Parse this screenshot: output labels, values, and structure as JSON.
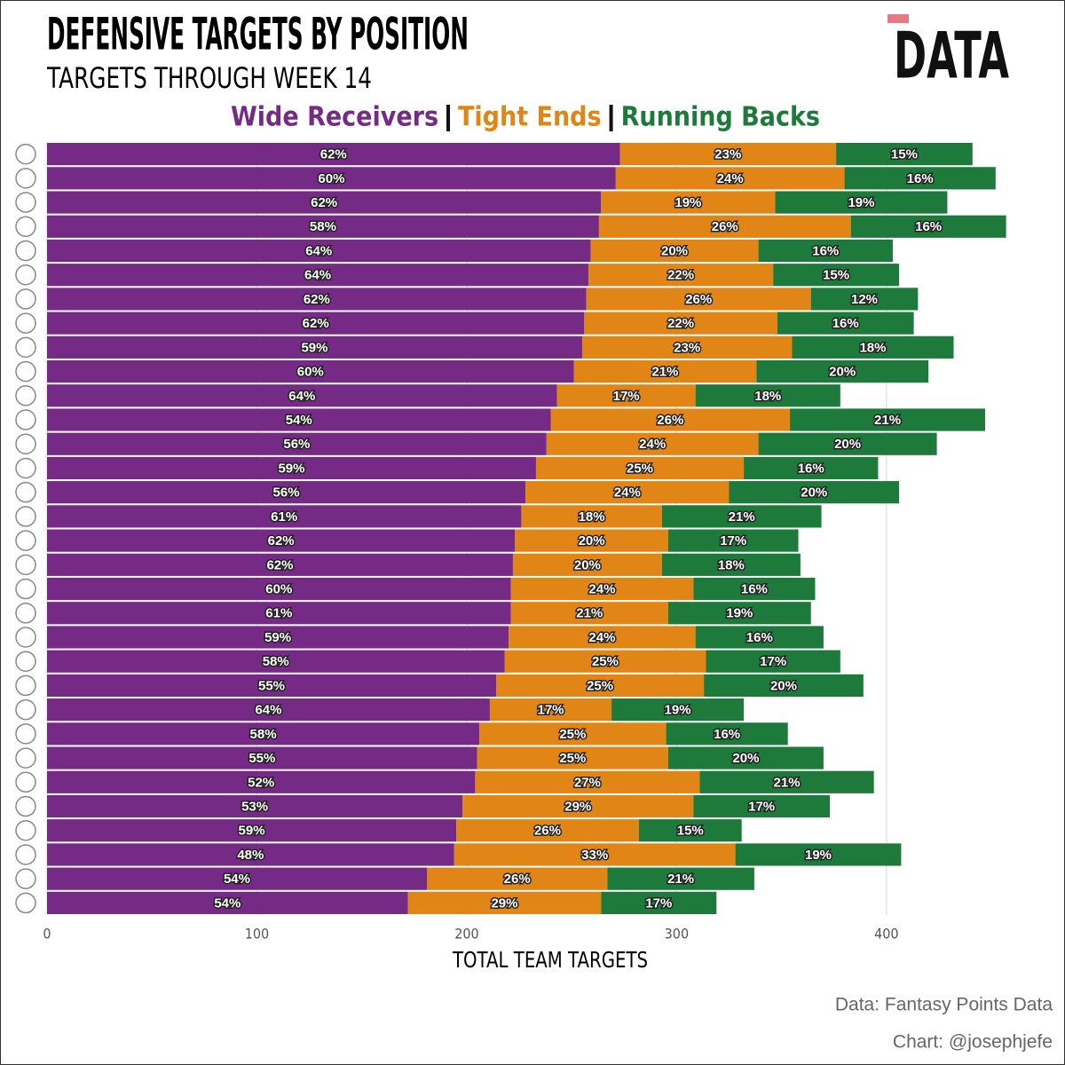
{
  "chart_data": {
    "type": "stacked_barh",
    "title": "DEFENSIVE TARGETS BY POSITION",
    "subtitle": "TARGETS THROUGH WEEK 14",
    "logo_text": "DATA",
    "x_label": "TOTAL TEAM TARGETS",
    "source": "Data: Fantasy Points Data",
    "credit": "Chart: @josephjefe",
    "categories": [
      null,
      null,
      null,
      null,
      null,
      null,
      null,
      null,
      null,
      null,
      null,
      null,
      null,
      null,
      null,
      null,
      null,
      null,
      null,
      null,
      null,
      null,
      null,
      null,
      null,
      null,
      null,
      null,
      null,
      null,
      null,
      null
    ],
    "xlim": [
      0,
      458
    ],
    "xticks": [
      0,
      100,
      200,
      300,
      400
    ],
    "grid": true,
    "series": [
      {
        "name": "Wide Receivers",
        "color": "#752a86",
        "values": [
          273,
          271,
          264,
          263,
          259,
          258,
          257,
          256,
          255,
          251,
          243,
          240,
          238,
          233,
          228,
          226,
          223,
          222,
          221,
          221,
          220,
          218,
          214,
          211,
          206,
          205,
          204,
          198,
          195,
          194,
          181,
          172
        ],
        "value_labels": [
          "62%",
          "60%",
          "62%",
          "58%",
          "64%",
          "64%",
          "62%",
          "62%",
          "59%",
          "60%",
          "64%",
          "54%",
          "56%",
          "59%",
          "56%",
          "61%",
          "62%",
          "62%",
          "60%",
          "61%",
          "59%",
          "58%",
          "55%",
          "64%",
          "58%",
          "55%",
          "52%",
          "53%",
          "59%",
          "48%",
          "54%",
          "54%"
        ]
      },
      {
        "name": "Tight Ends",
        "color": "#e08516",
        "values": [
          103,
          109,
          83,
          120,
          80,
          88,
          107,
          92,
          100,
          87,
          66,
          114,
          101,
          99,
          97,
          67,
          73,
          71,
          87,
          75,
          89,
          96,
          99,
          58,
          89,
          91,
          107,
          110,
          87,
          134,
          86,
          92
        ],
        "value_labels": [
          "23%",
          "24%",
          "19%",
          "26%",
          "20%",
          "22%",
          "26%",
          "22%",
          "23%",
          "21%",
          "17%",
          "26%",
          "24%",
          "25%",
          "24%",
          "18%",
          "20%",
          "20%",
          "24%",
          "21%",
          "24%",
          "25%",
          "25%",
          "17%",
          "25%",
          "25%",
          "27%",
          "29%",
          "26%",
          "33%",
          "26%",
          "29%"
        ]
      },
      {
        "name": "Running Backs",
        "color": "#1d7a3a",
        "values": [
          65,
          72,
          82,
          74,
          64,
          60,
          51,
          65,
          77,
          82,
          69,
          93,
          85,
          64,
          81,
          76,
          62,
          66,
          58,
          68,
          61,
          64,
          76,
          63,
          58,
          74,
          83,
          65,
          49,
          79,
          70,
          55
        ],
        "value_labels": [
          "15%",
          "16%",
          "19%",
          "16%",
          "16%",
          "15%",
          "12%",
          "16%",
          "18%",
          "20%",
          "18%",
          "21%",
          "20%",
          "16%",
          "20%",
          "21%",
          "17%",
          "18%",
          "16%",
          "19%",
          "16%",
          "17%",
          "20%",
          "19%",
          "16%",
          "20%",
          "21%",
          "17%",
          "15%",
          "19%",
          "21%",
          "17%"
        ]
      }
    ]
  }
}
